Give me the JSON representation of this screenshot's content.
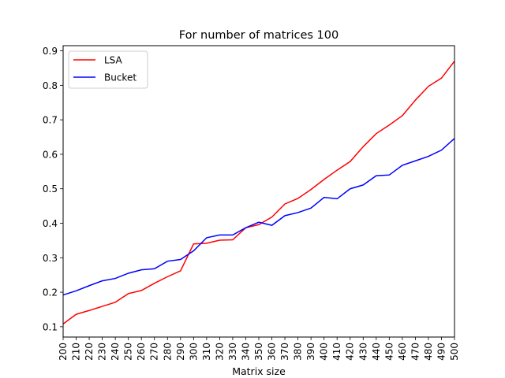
{
  "chart_data": {
    "type": "line",
    "title": "For number of matrices 100",
    "xlabel": "Matrix size",
    "ylabel": "",
    "xlim": [
      200,
      500
    ],
    "ylim": [
      0.07,
      0.915
    ],
    "x": [
      200,
      210,
      220,
      230,
      240,
      250,
      260,
      270,
      280,
      290,
      300,
      310,
      320,
      330,
      340,
      350,
      360,
      370,
      380,
      390,
      400,
      410,
      420,
      430,
      440,
      450,
      460,
      470,
      480,
      490,
      500
    ],
    "xticks": [
      "200",
      "210",
      "220",
      "230",
      "240",
      "250",
      "260",
      "270",
      "280",
      "290",
      "300",
      "310",
      "320",
      "330",
      "340",
      "350",
      "360",
      "370",
      "380",
      "390",
      "400",
      "410",
      "420",
      "430",
      "440",
      "450",
      "460",
      "470",
      "480",
      "490",
      "500"
    ],
    "yticks": [
      0.1,
      0.2,
      0.3,
      0.4,
      0.5,
      0.6,
      0.7,
      0.8,
      0.9
    ],
    "ytick_labels": [
      "0.1",
      "0.2",
      "0.3",
      "0.4",
      "0.5",
      "0.6",
      "0.7",
      "0.8",
      "0.9"
    ],
    "grid": false,
    "legend_position": "top-left",
    "series": [
      {
        "name": "LSA",
        "color": "#ff0000",
        "values": [
          0.108,
          0.136,
          0.147,
          0.159,
          0.171,
          0.196,
          0.205,
          0.226,
          0.245,
          0.262,
          0.34,
          0.342,
          0.351,
          0.352,
          0.387,
          0.396,
          0.418,
          0.456,
          0.472,
          0.498,
          0.527,
          0.554,
          0.579,
          0.622,
          0.66,
          0.685,
          0.712,
          0.757,
          0.797,
          0.821,
          0.87
        ]
      },
      {
        "name": "Bucket",
        "color": "#0000ff",
        "values": [
          0.192,
          0.204,
          0.219,
          0.233,
          0.24,
          0.255,
          0.265,
          0.268,
          0.29,
          0.295,
          0.32,
          0.358,
          0.366,
          0.366,
          0.387,
          0.403,
          0.394,
          0.422,
          0.431,
          0.444,
          0.475,
          0.471,
          0.5,
          0.511,
          0.538,
          0.54,
          0.568,
          0.581,
          0.594,
          0.612,
          0.646
        ]
      }
    ]
  }
}
